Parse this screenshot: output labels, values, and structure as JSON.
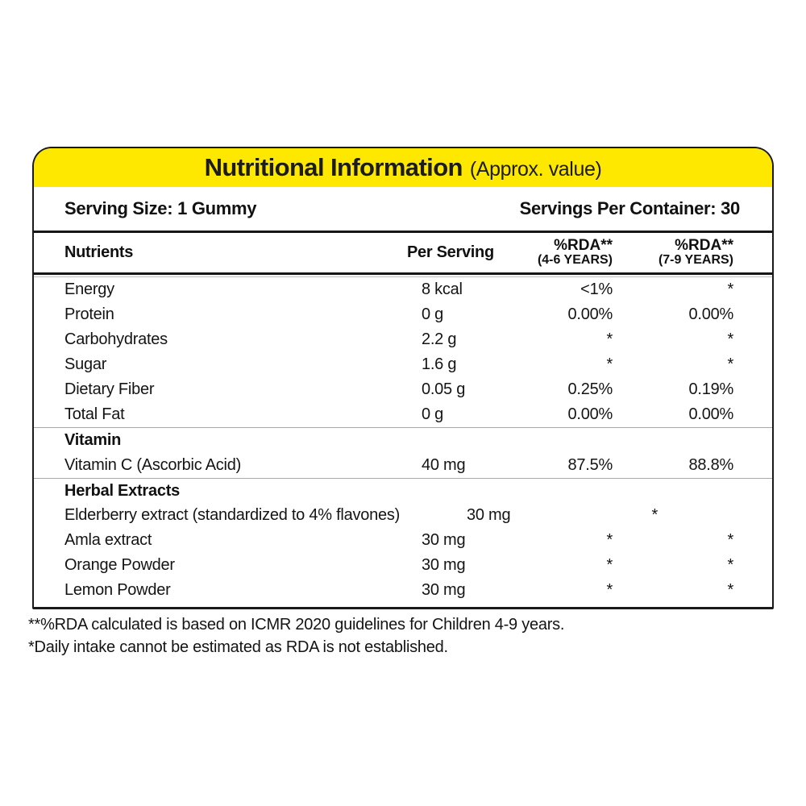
{
  "panel": {
    "title": "Nutritional Information",
    "title_note": "(Approx. value)",
    "header_bg": "#FFE800",
    "serving_size": "Serving Size: 1 Gummy",
    "servings_per_container": "Servings Per Container: 30"
  },
  "table": {
    "columns": {
      "nutrients": "Nutrients",
      "per_serving": "Per Serving",
      "rda46_line1": "%RDA**",
      "rda46_line2": "(4-6 YEARS)",
      "rda79_line1": "%RDA**",
      "rda79_line2": "(7-9 YEARS)"
    },
    "rows": [
      {
        "kind": "nutrient",
        "name": "Energy",
        "per_serving": "8 kcal",
        "rda_4_6": "<1%",
        "rda_7_9": "*"
      },
      {
        "kind": "nutrient",
        "name": "Protein",
        "per_serving": "0 g",
        "rda_4_6": "0.00%",
        "rda_7_9": "0.00%"
      },
      {
        "kind": "nutrient",
        "name": "Carbohydrates",
        "per_serving": "2.2 g",
        "rda_4_6": "*",
        "rda_7_9": "*"
      },
      {
        "kind": "nutrient",
        "name": "Sugar",
        "per_serving": "1.6 g",
        "rda_4_6": "*",
        "rda_7_9": "*"
      },
      {
        "kind": "nutrient",
        "name": "Dietary Fiber",
        "per_serving": "0.05 g",
        "rda_4_6": "0.25%",
        "rda_7_9": "0.19%"
      },
      {
        "kind": "nutrient",
        "name": "Total Fat",
        "per_serving": "0 g",
        "rda_4_6": "0.00%",
        "rda_7_9": "0.00%"
      },
      {
        "kind": "section",
        "name": "Vitamin"
      },
      {
        "kind": "nutrient",
        "name": "Vitamin C (Ascorbic Acid)",
        "per_serving": "40 mg",
        "rda_4_6": "87.5%",
        "rda_7_9": "88.8%"
      },
      {
        "kind": "section",
        "name": "Herbal Extracts"
      },
      {
        "kind": "nutrient",
        "name": "Elderberry extract (standardized to 4% flavones)",
        "per_serving": "30 mg",
        "rda_4_6": "*",
        "rda_7_9": "*"
      },
      {
        "kind": "nutrient",
        "name": "Amla extract",
        "per_serving": "30 mg",
        "rda_4_6": "*",
        "rda_7_9": "*"
      },
      {
        "kind": "nutrient",
        "name": "Orange Powder",
        "per_serving": "30 mg",
        "rda_4_6": "*",
        "rda_7_9": "*"
      },
      {
        "kind": "nutrient",
        "name": "Lemon Powder",
        "per_serving": "30 mg",
        "rda_4_6": "*",
        "rda_7_9": "*"
      }
    ]
  },
  "footnotes": [
    "**%RDA calculated is based on ICMR 2020 guidelines for Children 4-9 years.",
    "*Daily intake cannot be estimated as RDA is not established."
  ]
}
